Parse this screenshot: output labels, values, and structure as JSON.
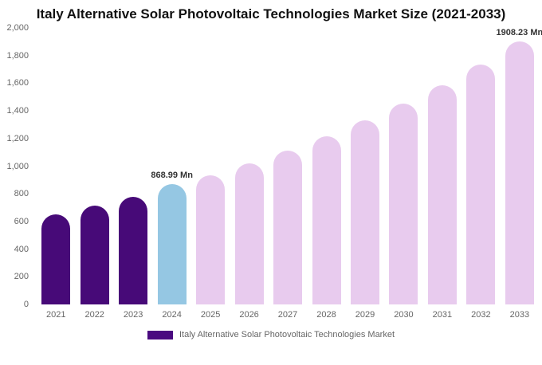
{
  "title": "Italy Alternative Solar Photovoltaic Technologies Market Size (2021-2033)",
  "legend": {
    "label": "Italy Alternative Solar Photovoltaic Technologies Market",
    "swatch_color": "#4a0a80"
  },
  "colors": {
    "historical": "#470a78",
    "current": "#95c7e3",
    "forecast": "#e8cbee"
  },
  "chart_data": {
    "type": "bar",
    "title": "Italy Alternative Solar Photovoltaic Technologies Market Size (2021-2033)",
    "categories": [
      "2021",
      "2022",
      "2023",
      "2024",
      "2025",
      "2026",
      "2027",
      "2028",
      "2029",
      "2030",
      "2031",
      "2032",
      "2033"
    ],
    "values": [
      650,
      712,
      780,
      868.99,
      932,
      1020,
      1110,
      1218,
      1330,
      1452,
      1585,
      1735,
      1908.23
    ],
    "bar_roles": [
      "historical",
      "historical",
      "historical",
      "current",
      "forecast",
      "forecast",
      "forecast",
      "forecast",
      "forecast",
      "forecast",
      "forecast",
      "forecast",
      "forecast"
    ],
    "annotations": [
      {
        "category": "2024",
        "text": "868.99 Mn"
      },
      {
        "category": "2033",
        "text": "1908.23 Mn"
      }
    ],
    "xlabel": "",
    "ylabel": "",
    "ylim": [
      0,
      2000
    ],
    "ytick_step": 200,
    "ytick_labels": [
      "0",
      "200",
      "400",
      "600",
      "800",
      "1,000",
      "1,200",
      "1,400",
      "1,600",
      "1,800",
      "2,000"
    ],
    "grid": false,
    "legend_position": "bottom",
    "legend_entries": [
      "Italy Alternative Solar Photovoltaic Technologies Market"
    ]
  }
}
